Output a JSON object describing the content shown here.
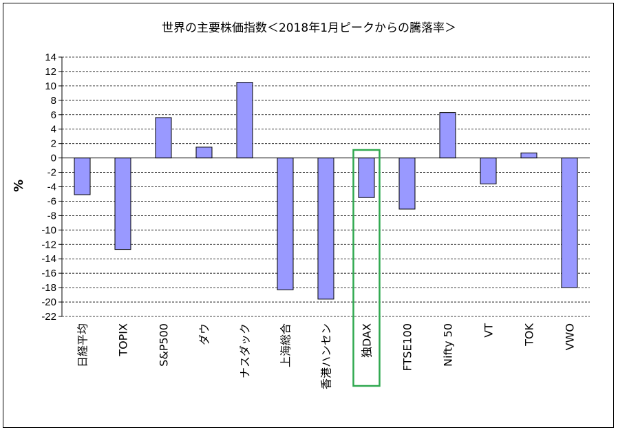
{
  "chart_data": {
    "type": "bar",
    "title": "世界の主要株価指数＜2018年1月ピークからの騰落率＞",
    "xlabel": "",
    "ylabel": "%",
    "ylim": [
      -22,
      14
    ],
    "ytick_step": 2,
    "grid": true,
    "grid_style": "dashed",
    "categories": [
      "日経平均",
      "TOPIX",
      "S&P500",
      "ダウ",
      "ナスダック",
      "上海総合",
      "香港ハンセン",
      "独DAX",
      "FTSE100",
      "Nifty 50",
      "VT",
      "TOK",
      "VWO"
    ],
    "values": [
      -5.1,
      -12.7,
      5.6,
      1.5,
      10.5,
      -18.3,
      -19.6,
      -5.5,
      -7.1,
      6.3,
      -3.6,
      0.7,
      -18.0
    ],
    "highlighted_category": "独DAX",
    "colors": {
      "bar_fill": "#9999ff",
      "bar_stroke": "#000000",
      "highlight_box": "#2fa84f",
      "grid": "#000000"
    }
  }
}
